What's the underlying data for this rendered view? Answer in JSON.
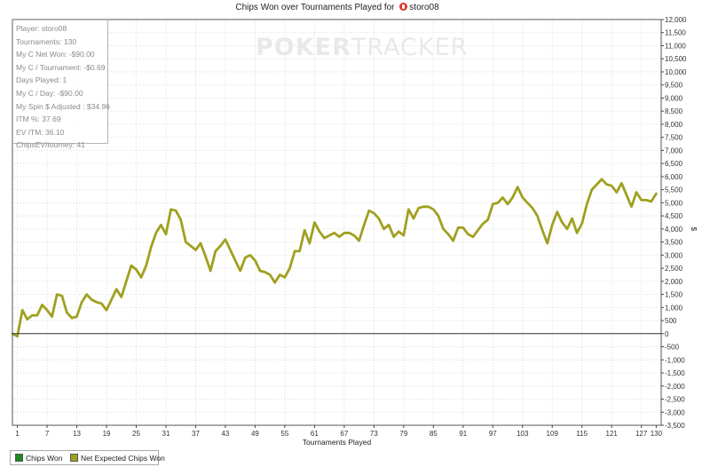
{
  "title": {
    "prefix": "Chips Won over Tournaments Played for",
    "player": "storo08"
  },
  "watermark": {
    "bold": "POKER",
    "thin": "TRACKER"
  },
  "stats_box": [
    "Player: storo08",
    "Tournaments: 130",
    "My C Net Won: -$90.00",
    "My C / Tournament: -$0.69",
    "Days Played: 1",
    "My C / Day: -$90.00",
    "My Spin $ Adjusted : $34.96",
    "ITM %: 37.69",
    "EV ITM: 36.10",
    "ChipsEV/tourney: 41"
  ],
  "legend": [
    {
      "label": "Chips Won",
      "color": "#1f8a1f"
    },
    {
      "label": "Net Expected Chips Won",
      "color": "#a0a020"
    }
  ],
  "chart_data": {
    "type": "line",
    "xlabel": "Tournaments Played",
    "ylabel": "$",
    "xlim": [
      0,
      131
    ],
    "ylim": [
      -3500,
      12000
    ],
    "x_ticks": [
      1,
      7,
      13,
      19,
      25,
      31,
      37,
      43,
      49,
      55,
      61,
      67,
      73,
      79,
      85,
      91,
      97,
      103,
      109,
      115,
      121,
      127,
      130
    ],
    "y_ticks": [
      -3500,
      -3000,
      -2500,
      -2000,
      -1500,
      -1000,
      -500,
      0,
      500,
      1000,
      1500,
      2000,
      2500,
      3000,
      3500,
      4000,
      4500,
      5000,
      5500,
      6000,
      6500,
      7000,
      7500,
      8000,
      8500,
      9000,
      9500,
      10000,
      10500,
      11000,
      11500,
      12000
    ],
    "y_tick_labels": [
      "-3,500",
      "-3,000",
      "-2,500",
      "-2,000",
      "-1,500",
      "-1,000",
      "-500",
      "0",
      "500",
      "1,000",
      "1,500",
      "2,000",
      "2,500",
      "3,000",
      "3,500",
      "4,000",
      "4,500",
      "5,000",
      "5,500",
      "6,000",
      "6,500",
      "7,000",
      "7,500",
      "8,000",
      "8,500",
      "9,000",
      "9,500",
      "10,000",
      "10,500",
      "11,000",
      "11,500",
      "12,000"
    ],
    "grid": true,
    "series": [
      {
        "name": "Net Expected Chips Won",
        "color": "#a0a020",
        "x": [
          0,
          1,
          2,
          3,
          4,
          5,
          6,
          7,
          8,
          9,
          10,
          11,
          12,
          13,
          14,
          15,
          16,
          17,
          18,
          19,
          20,
          21,
          22,
          23,
          24,
          25,
          26,
          27,
          28,
          29,
          30,
          31,
          32,
          33,
          34,
          35,
          36,
          37,
          38,
          39,
          40,
          41,
          42,
          43,
          44,
          45,
          46,
          47,
          48,
          49,
          50,
          51,
          52,
          53,
          54,
          55,
          56,
          57,
          58,
          59,
          60,
          61,
          62,
          63,
          64,
          65,
          66,
          67,
          68,
          69,
          70,
          71,
          72,
          73,
          74,
          75,
          76,
          77,
          78,
          79,
          80,
          81,
          82,
          83,
          84,
          85,
          86,
          87,
          88,
          89,
          90,
          91,
          92,
          93,
          94,
          95,
          96,
          97,
          98,
          99,
          100,
          101,
          102,
          103,
          104,
          105,
          106,
          107,
          108,
          109,
          110,
          111,
          112,
          113,
          114,
          115,
          116,
          117,
          118,
          119,
          120,
          121,
          122,
          123,
          124,
          125,
          126,
          127,
          128,
          129,
          130
        ],
        "y": [
          0,
          -100,
          900,
          550,
          700,
          700,
          1100,
          900,
          650,
          1500,
          1450,
          800,
          600,
          650,
          1200,
          1500,
          1300,
          1200,
          1150,
          900,
          1300,
          1700,
          1400,
          2000,
          2600,
          2450,
          2150,
          2600,
          3300,
          3850,
          4150,
          3800,
          4750,
          4700,
          4350,
          3500,
          3350,
          3200,
          3450,
          2950,
          2400,
          3150,
          3350,
          3600,
          3200,
          2800,
          2400,
          2900,
          3000,
          2800,
          2400,
          2350,
          2250,
          1950,
          2250,
          2150,
          2500,
          3150,
          3150,
          3950,
          3450,
          4250,
          3900,
          3650,
          3750,
          3850,
          3700,
          3850,
          3850,
          3750,
          3550,
          4150,
          4700,
          4600,
          4400,
          4000,
          4150,
          3700,
          3900,
          3750,
          4750,
          4400,
          4800,
          4850,
          4850,
          4750,
          4500,
          4000,
          3800,
          3550,
          4050,
          4050,
          3800,
          3700,
          3950,
          4200,
          4350,
          4950,
          5000,
          5200,
          4950,
          5200,
          5600,
          5200,
          5000,
          4800,
          4500,
          3950,
          3450,
          4150,
          4650,
          4250,
          4000,
          4400,
          3850,
          4200,
          4950,
          5500,
          5700,
          5900,
          5700,
          5650,
          5400,
          5750,
          5300,
          4850,
          5400,
          5100,
          5100,
          5050,
          5350
        ]
      }
    ]
  }
}
